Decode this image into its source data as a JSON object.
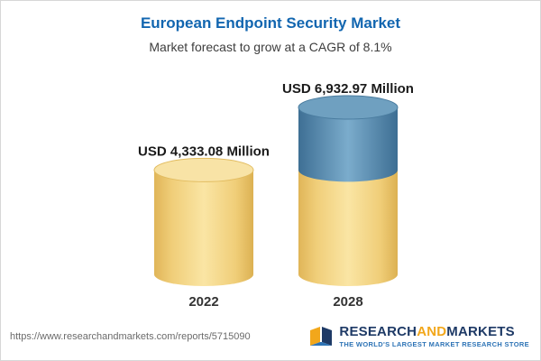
{
  "header": {
    "title": "European Endpoint Security Market",
    "subtitle": "Market forecast to grow at a CAGR of 8.1%"
  },
  "chart_data": {
    "type": "bar",
    "subtype": "3d-cylinder",
    "title": "European Endpoint Security Market",
    "subtitle": "Market forecast to grow at a CAGR of 8.1%",
    "cagr": "8.1%",
    "unit": "USD Million",
    "categories": [
      "2022",
      "2028"
    ],
    "values": [
      4333.08,
      6932.97
    ],
    "value_labels": [
      "USD 4,333.08 Million",
      "USD 6,932.97 Million"
    ],
    "grid": false,
    "legend": "none",
    "colors": {
      "base_segment": "#F5CF6E",
      "base_segment_top": "#F8E3A6",
      "growth_segment": "#5E92B6",
      "growth_segment_top": "#6FA0C0",
      "title_text": "#1266b0",
      "label_text": "#1a1a1a"
    },
    "notes": "2028 cylinder: lower segment (height equal to the 2022 value) is gold, the growth portion above it is blue"
  },
  "footer": {
    "url": "https://www.researchandmarkets.com/reports/5715090",
    "logo": {
      "research": "RESEARCH",
      "and": "AND",
      "markets": "MARKETS",
      "tagline": "THE WORLD'S LARGEST MARKET RESEARCH STORE"
    }
  }
}
